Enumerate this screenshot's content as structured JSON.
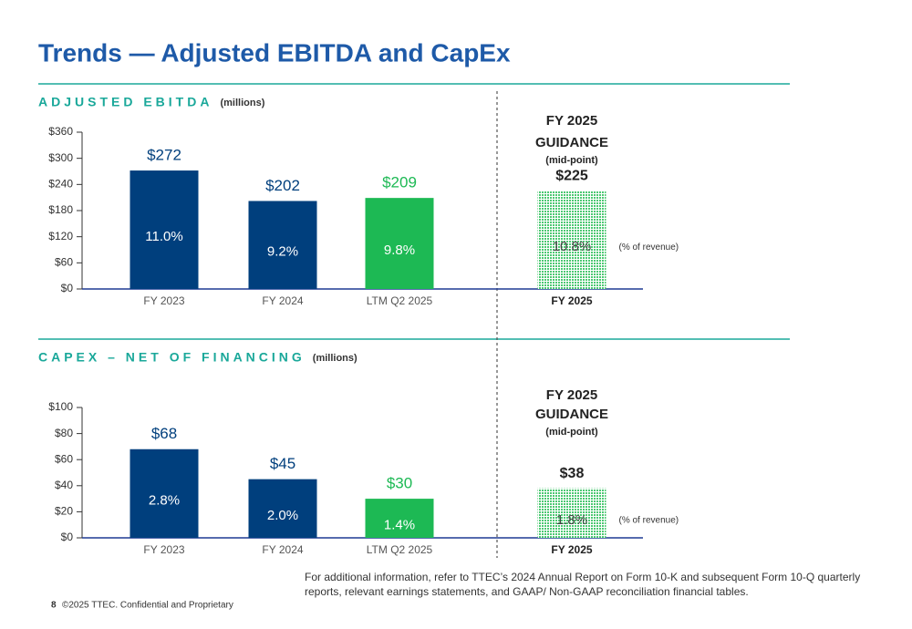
{
  "title": "Trends — Adjusted EBITDA and CapEx",
  "footnote": [
    "For additional information, refer to TTEC’s 2024 Annual Report on Form 10-K and subsequent Form 10-Q quarterly",
    "reports, relevant earnings statements, and GAAP/ Non-GAAP reconciliation financial tables."
  ],
  "footer": {
    "page": "8",
    "text": "©2025 TTEC. Confidential and Proprietary"
  },
  "chart_data": [
    {
      "type": "bar",
      "title": "ADJUSTED EBITDA",
      "subtitle": "(millions)",
      "categories": [
        "FY 2023",
        "FY 2024",
        "LTM Q2 2025",
        "FY 2025"
      ],
      "values": [
        272,
        202,
        209,
        225
      ],
      "value_labels": [
        "$272",
        "$202",
        "$209",
        "$225"
      ],
      "percent_labels": [
        "11.0%",
        "9.2%",
        "9.8%",
        "10.8%"
      ],
      "colors": [
        "#003f7d",
        "#003f7d",
        "#1db954",
        "#9fe3b3"
      ],
      "guidance_title": [
        "FY 2025",
        "GUIDANCE"
      ],
      "guidance_note": "(mid-point)",
      "percent_note": "(% of revenue)",
      "ylim": [
        0,
        360
      ],
      "yticks": [
        {
          "value": 0,
          "label": "$0"
        },
        {
          "value": 60,
          "label": "$60"
        },
        {
          "value": 120,
          "label": "$120"
        },
        {
          "value": 180,
          "label": "$180"
        },
        {
          "value": 240,
          "label": "$240"
        },
        {
          "value": 300,
          "label": "$300"
        },
        {
          "value": 360,
          "label": "$360"
        }
      ]
    },
    {
      "type": "bar",
      "title": "CAPEX – NET OF FINANCING",
      "subtitle": "(millions)",
      "categories": [
        "FY 2023",
        "FY 2024",
        "LTM Q2 2025",
        "FY 2025"
      ],
      "values": [
        68,
        45,
        30,
        38
      ],
      "value_labels": [
        "$68",
        "$45",
        "$30",
        "$38"
      ],
      "percent_labels": [
        "2.8%",
        "2.0%",
        "1.4%",
        "1.8%"
      ],
      "colors": [
        "#003f7d",
        "#003f7d",
        "#1db954",
        "#9fe3b3"
      ],
      "guidance_title": [
        "FY 2025",
        "GUIDANCE"
      ],
      "guidance_note": "(mid-point)",
      "percent_note": "(% of revenue)",
      "ylim": [
        0,
        100
      ],
      "yticks": [
        {
          "value": 0,
          "label": "$0"
        },
        {
          "value": 20,
          "label": "$20"
        },
        {
          "value": 40,
          "label": "$40"
        },
        {
          "value": 60,
          "label": "$60"
        },
        {
          "value": 80,
          "label": "$80"
        },
        {
          "value": 100,
          "label": "$100"
        }
      ]
    }
  ]
}
